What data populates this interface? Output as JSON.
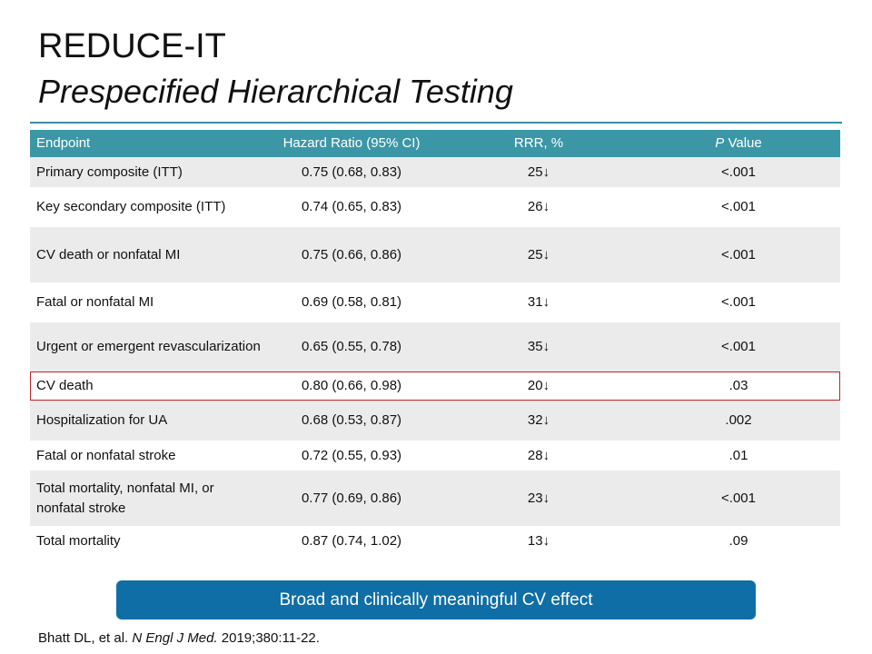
{
  "header": {
    "title": "REDUCE-IT",
    "subtitle": "Prespecified Hierarchical Testing"
  },
  "table": {
    "columns": [
      "Endpoint",
      "Hazard Ratio (95% CI)",
      "RRR, %",
      [
        "P",
        " Value"
      ]
    ],
    "rows": [
      [
        "Primary composite (ITT)",
        "0.75 (0.68, 0.83)",
        "25↓",
        "<.001"
      ],
      [
        "Key secondary composite (ITT)",
        "0.74 (0.65, 0.83)",
        "26↓",
        "<.001"
      ],
      [
        "CV death or nonfatal MI",
        "0.75 (0.66, 0.86)",
        "25↓",
        "<.001"
      ],
      [
        "Fatal or nonfatal MI",
        "0.69 (0.58, 0.81)",
        "31↓",
        "<.001"
      ],
      [
        "Urgent or emergent revascularization",
        "0.65 (0.55, 0.78)",
        "35↓",
        "<.001"
      ],
      [
        "CV death",
        "0.80 (0.66, 0.98)",
        "20↓",
        ".03"
      ],
      [
        "Hospitalization for UA",
        "0.68 (0.53, 0.87)",
        "32↓",
        ".002"
      ],
      [
        "Fatal or nonfatal stroke",
        "0.72 (0.55, 0.93)",
        "28↓",
        ".01"
      ],
      [
        "Total mortality, nonfatal MI, or nonfatal stroke",
        "0.77 (0.69, 0.86)",
        "23↓",
        "<.001"
      ],
      [
        "Total mortality",
        "0.87 (0.74, 1.02)",
        "13↓",
        ".09"
      ]
    ]
  },
  "banner": "Broad and clinically meaningful CV effect",
  "citation": [
    "Bhatt DL, et al. ",
    "N Engl J Med.",
    " 2019;380:11-22."
  ]
}
